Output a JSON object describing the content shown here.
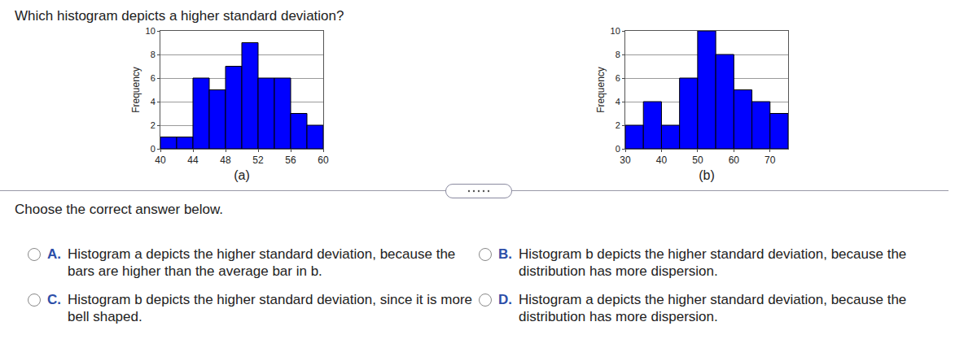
{
  "question": "Which histogram depicts a higher standard deviation?",
  "chart_data": [
    {
      "type": "histogram",
      "x_label": "(a)",
      "y_label": "Frequency",
      "bins": [
        40,
        42,
        44,
        46,
        48,
        50,
        52,
        54,
        56,
        58,
        60
      ],
      "values": [
        1,
        1,
        6,
        5,
        7,
        9,
        6,
        6,
        3,
        2
      ],
      "color": "#0000ff",
      "xlim": [
        40,
        60
      ],
      "xticks": [
        40,
        44,
        48,
        52,
        56,
        60
      ],
      "ylim": [
        0,
        10
      ],
      "yticks": [
        0,
        2,
        4,
        6,
        8,
        10
      ],
      "grid": true
    },
    {
      "type": "histogram",
      "x_label": "(b)",
      "y_label": "Frequency",
      "bins": [
        30,
        35,
        40,
        45,
        50,
        55,
        60,
        65,
        70,
        75
      ],
      "values": [
        2,
        4,
        2,
        6,
        10,
        8,
        5,
        4,
        3
      ],
      "color": "#0000ff",
      "xlim": [
        30,
        75
      ],
      "xticks": [
        30,
        40,
        50,
        60,
        70
      ],
      "ylim": [
        0,
        10
      ],
      "yticks": [
        0,
        2,
        4,
        6,
        8,
        10
      ],
      "grid": true
    }
  ],
  "prompt": "Choose the correct answer below.",
  "choices": [
    {
      "letter": "A.",
      "text": "Histogram a depicts the higher standard deviation, because the bars are higher than the average bar in b."
    },
    {
      "letter": "B.",
      "text": "Histogram b depicts the higher standard deviation, because the distribution has more dispersion."
    },
    {
      "letter": "C.",
      "text": "Histogram b depicts the higher standard deviation, since it is more bell shaped."
    },
    {
      "letter": "D.",
      "text": "Histogram a depicts the higher standard deviation, because the distribution has more dispersion."
    }
  ]
}
